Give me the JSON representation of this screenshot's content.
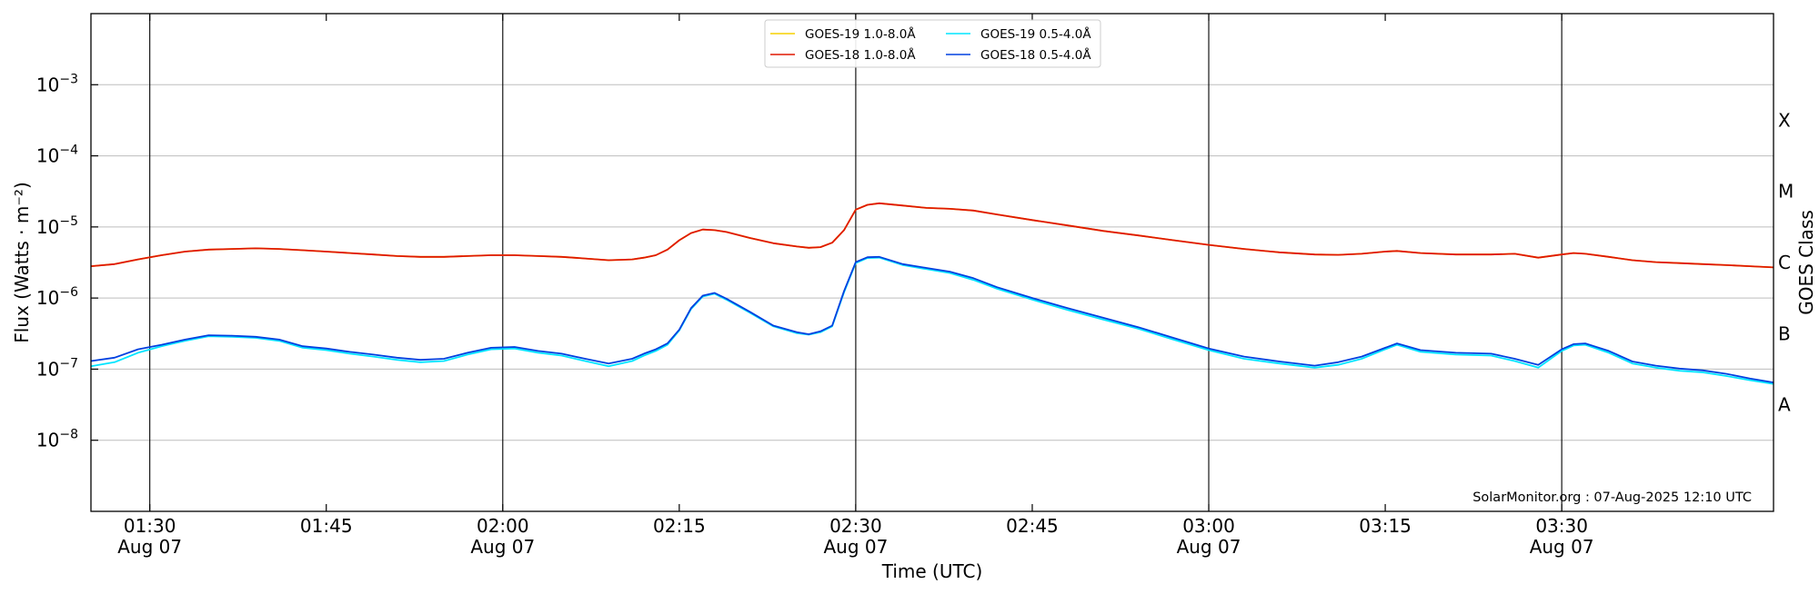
{
  "chart_data": {
    "type": "line",
    "y_scale": "log",
    "ylim": [
      1e-09,
      0.01
    ],
    "xlim": [
      "01:25",
      "03:48"
    ],
    "ylabel": "Flux (Watts · m⁻²)",
    "xlabel": "Time (UTC)",
    "right_label": "GOES Class",
    "watermark": "SolarMonitor.org : 07-Aug-2025 12:10 UTC",
    "grid": "horizontal at decades",
    "legend_position": "top-center",
    "y_ticks": [
      {
        "exp": "−8",
        "value": 1e-08
      },
      {
        "exp": "−7",
        "value": 1e-07
      },
      {
        "exp": "−6",
        "value": 1e-06
      },
      {
        "exp": "−5",
        "value": 1e-05
      },
      {
        "exp": "−4",
        "value": 0.0001
      },
      {
        "exp": "−3",
        "value": 0.001
      }
    ],
    "x_ticks": [
      {
        "time": "01:30",
        "label": "01:30",
        "sublabel": "Aug 07"
      },
      {
        "time": "01:45",
        "label": "01:45",
        "sublabel": ""
      },
      {
        "time": "02:00",
        "label": "02:00",
        "sublabel": "Aug 07"
      },
      {
        "time": "02:15",
        "label": "02:15",
        "sublabel": ""
      },
      {
        "time": "02:30",
        "label": "02:30",
        "sublabel": "Aug 07"
      },
      {
        "time": "02:45",
        "label": "02:45",
        "sublabel": ""
      },
      {
        "time": "03:00",
        "label": "03:00",
        "sublabel": "Aug 07"
      },
      {
        "time": "03:15",
        "label": "03:15",
        "sublabel": ""
      },
      {
        "time": "03:30",
        "label": "03:30",
        "sublabel": "Aug 07"
      }
    ],
    "vertical_markers": [
      "01:30",
      "02:00",
      "02:30",
      "03:00",
      "03:30"
    ],
    "goes_classes": [
      {
        "label": "A",
        "value": 3.16e-08
      },
      {
        "label": "B",
        "value": 3.16e-07
      },
      {
        "label": "C",
        "value": 3.16e-06
      },
      {
        "label": "M",
        "value": 3.16e-05
      },
      {
        "label": "X",
        "value": 0.000316
      }
    ],
    "x": [
      "01:25",
      "01:27",
      "01:29",
      "01:31",
      "01:33",
      "01:35",
      "01:37",
      "01:39",
      "01:41",
      "01:43",
      "01:45",
      "01:47",
      "01:49",
      "01:51",
      "01:53",
      "01:55",
      "01:57",
      "01:59",
      "02:01",
      "02:03",
      "02:05",
      "02:07",
      "02:09",
      "02:11",
      "02:12",
      "02:13",
      "02:14",
      "02:15",
      "02:16",
      "02:17",
      "02:18",
      "02:19",
      "02:21",
      "02:23",
      "02:25",
      "02:26",
      "02:27",
      "02:28",
      "02:29",
      "02:30",
      "02:31",
      "02:32",
      "02:34",
      "02:36",
      "02:38",
      "02:40",
      "02:42",
      "02:45",
      "02:48",
      "02:51",
      "02:54",
      "02:57",
      "03:00",
      "03:03",
      "03:06",
      "03:09",
      "03:11",
      "03:13",
      "03:15",
      "03:16",
      "03:18",
      "03:21",
      "03:24",
      "03:26",
      "03:28",
      "03:30",
      "03:31",
      "03:32",
      "03:34",
      "03:36",
      "03:38",
      "03:40",
      "03:42",
      "03:44",
      "03:46",
      "03:48"
    ],
    "series": [
      {
        "name": "GOES-19 1.0-8.0Å",
        "color": "#f5d000",
        "values": [
          2.8e-06,
          3e-06,
          3.5e-06,
          4e-06,
          4.5e-06,
          4.8e-06,
          4.9e-06,
          5e-06,
          4.9e-06,
          4.7e-06,
          4.5e-06,
          4.3e-06,
          4.1e-06,
          3.9e-06,
          3.8e-06,
          3.8e-06,
          3.9e-06,
          4e-06,
          4e-06,
          3.9e-06,
          3.8e-06,
          3.6e-06,
          3.4e-06,
          3.5e-06,
          3.7e-06,
          4e-06,
          4.8e-06,
          6.5e-06,
          8.2e-06,
          9.2e-06,
          9e-06,
          8.5e-06,
          7e-06,
          5.9e-06,
          5.3e-06,
          5.1e-06,
          5.2e-06,
          6e-06,
          9e-06,
          1.75e-05,
          2.05e-05,
          2.15e-05,
          2e-05,
          1.85e-05,
          1.8e-05,
          1.7e-05,
          1.5e-05,
          1.25e-05,
          1.05e-05,
          8.8e-06,
          7.6e-06,
          6.5e-06,
          5.6e-06,
          4.9e-06,
          4.4e-06,
          4.1e-06,
          4.05e-06,
          4.2e-06,
          4.5e-06,
          4.6e-06,
          4.3e-06,
          4.1e-06,
          4.1e-06,
          4.2e-06,
          3.7e-06,
          4.1e-06,
          4.3e-06,
          4.2e-06,
          3.8e-06,
          3.4e-06,
          3.2e-06,
          3.1e-06,
          3e-06,
          2.9e-06,
          2.8e-06,
          2.7e-06
        ]
      },
      {
        "name": "GOES-18 1.0-8.0Å",
        "color": "#e01800",
        "values": [
          2.8e-06,
          3e-06,
          3.5e-06,
          4e-06,
          4.5e-06,
          4.8e-06,
          4.9e-06,
          5e-06,
          4.9e-06,
          4.7e-06,
          4.5e-06,
          4.3e-06,
          4.1e-06,
          3.9e-06,
          3.8e-06,
          3.8e-06,
          3.9e-06,
          4e-06,
          4e-06,
          3.9e-06,
          3.8e-06,
          3.6e-06,
          3.4e-06,
          3.5e-06,
          3.7e-06,
          4e-06,
          4.8e-06,
          6.5e-06,
          8.2e-06,
          9.2e-06,
          9e-06,
          8.5e-06,
          7e-06,
          5.9e-06,
          5.3e-06,
          5.1e-06,
          5.2e-06,
          6e-06,
          9e-06,
          1.75e-05,
          2.05e-05,
          2.15e-05,
          2e-05,
          1.85e-05,
          1.8e-05,
          1.7e-05,
          1.5e-05,
          1.25e-05,
          1.05e-05,
          8.8e-06,
          7.6e-06,
          6.5e-06,
          5.6e-06,
          4.9e-06,
          4.4e-06,
          4.1e-06,
          4.05e-06,
          4.2e-06,
          4.5e-06,
          4.6e-06,
          4.3e-06,
          4.1e-06,
          4.1e-06,
          4.2e-06,
          3.7e-06,
          4.1e-06,
          4.3e-06,
          4.2e-06,
          3.8e-06,
          3.4e-06,
          3.2e-06,
          3.1e-06,
          3e-06,
          2.9e-06,
          2.8e-06,
          2.7e-06
        ]
      },
      {
        "name": "GOES-19 0.5-4.0Å",
        "color": "#00e5ff",
        "values": [
          1.1e-07,
          1.25e-07,
          1.7e-07,
          2.1e-07,
          2.5e-07,
          2.9e-07,
          2.85e-07,
          2.75e-07,
          2.5e-07,
          2e-07,
          1.85e-07,
          1.65e-07,
          1.5e-07,
          1.35e-07,
          1.25e-07,
          1.3e-07,
          1.6e-07,
          1.9e-07,
          1.95e-07,
          1.7e-07,
          1.55e-07,
          1.3e-07,
          1.1e-07,
          1.3e-07,
          1.55e-07,
          1.8e-07,
          2.2e-07,
          3.5e-07,
          7e-07,
          1.05e-06,
          1.15e-06,
          9.5e-07,
          6.2e-07,
          4e-07,
          3.2e-07,
          3.05e-07,
          3.3e-07,
          4e-07,
          1.2e-06,
          3.1e-06,
          3.65e-06,
          3.7e-06,
          2.9e-06,
          2.55e-06,
          2.25e-06,
          1.8e-06,
          1.35e-06,
          9.5e-07,
          6.8e-07,
          5e-07,
          3.7e-07,
          2.6e-07,
          1.85e-07,
          1.4e-07,
          1.2e-07,
          1.05e-07,
          1.15e-07,
          1.4e-07,
          1.9e-07,
          2.2e-07,
          1.75e-07,
          1.6e-07,
          1.55e-07,
          1.3e-07,
          1.05e-07,
          1.8e-07,
          2.15e-07,
          2.2e-07,
          1.7e-07,
          1.2e-07,
          1.05e-07,
          9.5e-08,
          9e-08,
          8e-08,
          7e-08,
          6.2e-08
        ]
      },
      {
        "name": "GOES-18 0.5-4.0Å",
        "color": "#0040e0",
        "values": [
          1.3e-07,
          1.45e-07,
          1.9e-07,
          2.2e-07,
          2.6e-07,
          3e-07,
          2.95e-07,
          2.85e-07,
          2.6e-07,
          2.1e-07,
          1.95e-07,
          1.75e-07,
          1.6e-07,
          1.45e-07,
          1.35e-07,
          1.4e-07,
          1.7e-07,
          2e-07,
          2.05e-07,
          1.8e-07,
          1.65e-07,
          1.4e-07,
          1.2e-07,
          1.4e-07,
          1.65e-07,
          1.9e-07,
          2.3e-07,
          3.6e-07,
          7.2e-07,
          1.08e-06,
          1.18e-06,
          9.8e-07,
          6.4e-07,
          4.1e-07,
          3.3e-07,
          3.1e-07,
          3.4e-07,
          4.1e-07,
          1.25e-06,
          3.2e-06,
          3.75e-06,
          3.8e-06,
          3e-06,
          2.65e-06,
          2.35e-06,
          1.9e-06,
          1.42e-06,
          1e-06,
          7.2e-07,
          5.3e-07,
          3.9e-07,
          2.75e-07,
          1.95e-07,
          1.5e-07,
          1.28e-07,
          1.12e-07,
          1.25e-07,
          1.5e-07,
          2e-07,
          2.3e-07,
          1.85e-07,
          1.7e-07,
          1.65e-07,
          1.4e-07,
          1.15e-07,
          1.9e-07,
          2.25e-07,
          2.3e-07,
          1.8e-07,
          1.28e-07,
          1.12e-07,
          1.02e-07,
          9.6e-08,
          8.6e-08,
          7.4e-08,
          6.5e-08
        ]
      }
    ]
  }
}
